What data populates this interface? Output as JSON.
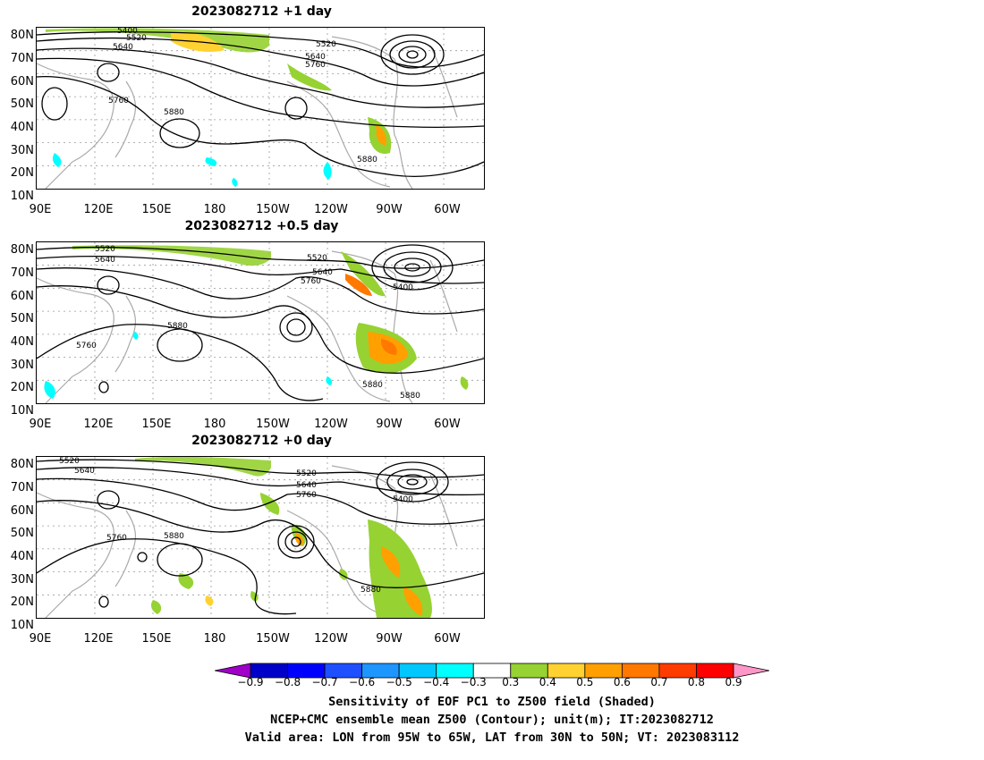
{
  "panels": [
    {
      "title": "2023082712  +1 day"
    },
    {
      "title": "2023082712  +0.5 day"
    },
    {
      "title": "2023082712  +0 day"
    }
  ],
  "lat_labels": [
    "80N",
    "70N",
    "60N",
    "50N",
    "40N",
    "30N",
    "20N",
    "10N"
  ],
  "lon_labels": [
    "90E",
    "120E",
    "150E",
    "180",
    "150W",
    "120W",
    "90W",
    "60W"
  ],
  "contour_labels": {
    "p0": [
      "5400",
      "5520",
      "5640",
      "5520",
      "5640",
      "5760",
      "5760",
      "5880",
      "5880"
    ],
    "p1": [
      "5520",
      "5640",
      "5520",
      "5640",
      "5760",
      "5400",
      "5880",
      "5760",
      "5880",
      "5880"
    ],
    "p2": [
      "5520",
      "5640",
      "5520",
      "5640",
      "5760",
      "5400",
      "5760",
      "5880",
      "5880"
    ]
  },
  "colorbar": {
    "ticks": [
      "−0.9",
      "−0.8",
      "−0.7",
      "−0.6",
      "−0.5",
      "−0.4",
      "−0.3",
      "0.3",
      "0.4",
      "0.5",
      "0.6",
      "0.7",
      "0.8",
      "0.9"
    ],
    "colors": [
      "#a000c8",
      "#0000c8",
      "#0000ff",
      "#1e50ff",
      "#1e96ff",
      "#00c8ff",
      "#00ffff",
      "#ffffff",
      "#96d232",
      "#ffd232",
      "#ffa000",
      "#ff7800",
      "#ff3c00",
      "#ff0000",
      "#ff96c8"
    ]
  },
  "captions": [
    "Sensitivity of EOF PC1 to Z500 field (Shaded)",
    "NCEP+CMC ensemble mean Z500 (Contour); unit(m); IT:2023082712",
    "Valid area: LON from 95W to 65W, LAT from 30N to 50N; VT: 2023083112"
  ]
}
